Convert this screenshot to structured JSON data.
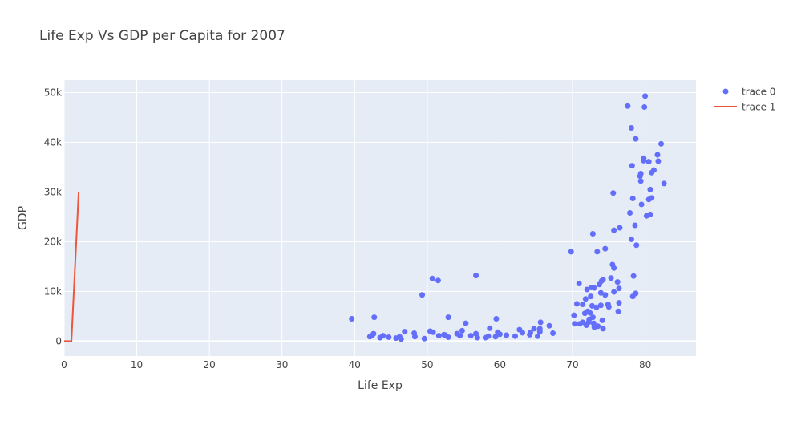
{
  "chart_data": {
    "type": "scatter",
    "title": "Life Exp Vs GDP per Capita for 2007",
    "xlabel": "Life Exp",
    "ylabel": "GDP",
    "xlim": [
      0,
      87
    ],
    "ylim": [
      -3000,
      52500
    ],
    "x_ticks": [
      0,
      10,
      20,
      30,
      40,
      50,
      60,
      70,
      80
    ],
    "x_tick_labels": [
      "0",
      "10",
      "20",
      "30",
      "40",
      "50",
      "60",
      "70",
      "80"
    ],
    "y_ticks": [
      0,
      10000,
      20000,
      30000,
      40000,
      50000
    ],
    "y_tick_labels": [
      "0",
      "10k",
      "20k",
      "30k",
      "40k",
      "50k"
    ],
    "grid": true,
    "legend_position": "top-right",
    "colors": {
      "plot_bg": "#e5ecf6",
      "grid": "#ffffff",
      "trace0": "#636efa",
      "trace1": "#ef553b",
      "text": "#444444"
    },
    "series": [
      {
        "name": "trace 0",
        "mode": "markers",
        "points": [
          [
            39.6,
            4500
          ],
          [
            42.1,
            900
          ],
          [
            42.4,
            1100
          ],
          [
            42.6,
            1500
          ],
          [
            42.7,
            4800
          ],
          [
            43.5,
            700
          ],
          [
            43.9,
            1100
          ],
          [
            44.7,
            800
          ],
          [
            45.7,
            600
          ],
          [
            46.2,
            900
          ],
          [
            46.4,
            400
          ],
          [
            46.9,
            1900
          ],
          [
            48.2,
            1600
          ],
          [
            48.3,
            900
          ],
          [
            49.3,
            9300
          ],
          [
            49.6,
            500
          ],
          [
            50.4,
            2000
          ],
          [
            50.7,
            12600
          ],
          [
            50.8,
            1800
          ],
          [
            51.5,
            12200
          ],
          [
            51.6,
            1100
          ],
          [
            52.3,
            1300
          ],
          [
            52.5,
            1200
          ],
          [
            52.9,
            4800
          ],
          [
            52.9,
            800
          ],
          [
            54.1,
            1500
          ],
          [
            54.5,
            1100
          ],
          [
            54.8,
            2100
          ],
          [
            55.3,
            3600
          ],
          [
            56.0,
            1100
          ],
          [
            56.7,
            1500
          ],
          [
            56.7,
            13200
          ],
          [
            56.9,
            700
          ],
          [
            58.0,
            700
          ],
          [
            58.4,
            1000
          ],
          [
            58.6,
            2600
          ],
          [
            59.4,
            900
          ],
          [
            59.5,
            4500
          ],
          [
            59.7,
            1800
          ],
          [
            60.0,
            1400
          ],
          [
            60.9,
            1200
          ],
          [
            62.1,
            1000
          ],
          [
            62.7,
            2300
          ],
          [
            63.1,
            1700
          ],
          [
            64.1,
            1300
          ],
          [
            64.2,
            1700
          ],
          [
            64.7,
            2500
          ],
          [
            65.2,
            1000
          ],
          [
            65.5,
            1900
          ],
          [
            65.5,
            2500
          ],
          [
            65.6,
            3800
          ],
          [
            66.8,
            3100
          ],
          [
            67.3,
            1600
          ],
          [
            69.8,
            18000
          ],
          [
            70.2,
            5200
          ],
          [
            70.3,
            3500
          ],
          [
            70.6,
            7500
          ],
          [
            70.9,
            11600
          ],
          [
            71.0,
            3500
          ],
          [
            71.4,
            3800
          ],
          [
            71.4,
            7400
          ],
          [
            71.7,
            5600
          ],
          [
            71.8,
            8500
          ],
          [
            71.9,
            3200
          ],
          [
            72.0,
            10400
          ],
          [
            72.1,
            6000
          ],
          [
            72.2,
            3800
          ],
          [
            72.3,
            4400
          ],
          [
            72.4,
            5700
          ],
          [
            72.5,
            9000
          ],
          [
            72.6,
            10800
          ],
          [
            72.7,
            7100
          ],
          [
            72.8,
            21600
          ],
          [
            72.8,
            4800
          ],
          [
            72.9,
            3600
          ],
          [
            73.0,
            2800
          ],
          [
            73.0,
            10700
          ],
          [
            73.3,
            6800
          ],
          [
            73.4,
            18000
          ],
          [
            73.5,
            3000
          ],
          [
            73.7,
            11400
          ],
          [
            73.9,
            9700
          ],
          [
            73.9,
            7200
          ],
          [
            74.0,
            12100
          ],
          [
            74.1,
            4200
          ],
          [
            74.2,
            2500
          ],
          [
            74.2,
            12400
          ],
          [
            74.5,
            9300
          ],
          [
            74.5,
            18600
          ],
          [
            74.9,
            7400
          ],
          [
            75.0,
            6900
          ],
          [
            75.3,
            12700
          ],
          [
            75.5,
            15400
          ],
          [
            75.6,
            29800
          ],
          [
            75.7,
            14700
          ],
          [
            75.7,
            9900
          ],
          [
            75.7,
            22300
          ],
          [
            76.2,
            11900
          ],
          [
            76.3,
            6000
          ],
          [
            76.4,
            7700
          ],
          [
            76.4,
            10600
          ],
          [
            76.5,
            22800
          ],
          [
            77.6,
            47300
          ],
          [
            77.9,
            25800
          ],
          [
            78.1,
            20500
          ],
          [
            78.1,
            42900
          ],
          [
            78.2,
            35300
          ],
          [
            78.3,
            9000
          ],
          [
            78.3,
            28700
          ],
          [
            78.4,
            13100
          ],
          [
            78.6,
            23300
          ],
          [
            78.7,
            40700
          ],
          [
            78.7,
            9600
          ],
          [
            78.8,
            19300
          ],
          [
            79.3,
            33200
          ],
          [
            79.4,
            33700
          ],
          [
            79.4,
            32200
          ],
          [
            79.5,
            27500
          ],
          [
            79.8,
            36800
          ],
          [
            79.8,
            36300
          ],
          [
            79.9,
            47100
          ],
          [
            80.0,
            49300
          ],
          [
            80.2,
            25200
          ],
          [
            80.5,
            28500
          ],
          [
            80.5,
            36100
          ],
          [
            80.7,
            25500
          ],
          [
            80.7,
            30500
          ],
          [
            80.9,
            33900
          ],
          [
            80.9,
            28800
          ],
          [
            81.2,
            34400
          ],
          [
            81.7,
            37500
          ],
          [
            81.8,
            36200
          ],
          [
            82.2,
            39700
          ],
          [
            82.6,
            31700
          ]
        ]
      },
      {
        "name": "trace 1",
        "mode": "lines",
        "points": [
          [
            0,
            0
          ],
          [
            1,
            0
          ],
          [
            2,
            30000
          ]
        ]
      }
    ]
  }
}
